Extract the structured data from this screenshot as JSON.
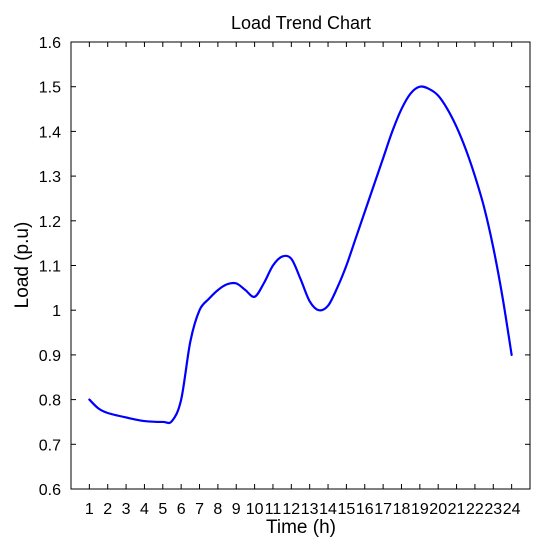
{
  "chart_data": {
    "type": "line",
    "title": "Load Trend Chart",
    "xlabel": "Time (h)",
    "ylabel": "Load (p.u)",
    "xlim": [
      0,
      25
    ],
    "ylim": [
      0.6,
      1.6
    ],
    "x_ticks": [
      1,
      2,
      3,
      4,
      5,
      6,
      7,
      8,
      9,
      10,
      11,
      12,
      13,
      14,
      15,
      16,
      17,
      18,
      19,
      20,
      21,
      22,
      23,
      24
    ],
    "x_tick_labels": [
      "1",
      "2",
      "3",
      "4",
      "5",
      "6",
      "7",
      "8",
      "9",
      "10",
      "11",
      "12",
      "13",
      "14",
      "15",
      "16",
      "17",
      "18",
      "19",
      "20",
      "21",
      "22",
      "23",
      "24"
    ],
    "y_ticks": [
      0.6,
      0.7,
      0.8,
      0.9,
      1.0,
      1.1,
      1.2,
      1.3,
      1.4,
      1.5,
      1.6
    ],
    "y_tick_labels": [
      "0.6",
      "0.7",
      "0.8",
      "0.9",
      "1",
      "1.1",
      "1.2",
      "1.3",
      "1.4",
      "1.5",
      "1.6"
    ],
    "grid": false,
    "series": [
      {
        "color": "#0000ff",
        "x": [
          1,
          1.5,
          2,
          3,
          4,
          5,
          5.5,
          6,
          6.5,
          7,
          7.5,
          8,
          8.5,
          9,
          9.5,
          10,
          10.5,
          11,
          11.5,
          12,
          12.5,
          13,
          13.5,
          14,
          14.5,
          15,
          15.5,
          16,
          16.5,
          17,
          17.5,
          18,
          18.5,
          19,
          19.5,
          20,
          20.5,
          21,
          21.5,
          22,
          22.5,
          23,
          23.5,
          24
        ],
        "y": [
          0.8,
          0.78,
          0.77,
          0.76,
          0.752,
          0.75,
          0.752,
          0.8,
          0.93,
          1.0,
          1.025,
          1.045,
          1.058,
          1.06,
          1.045,
          1.03,
          1.06,
          1.1,
          1.12,
          1.115,
          1.07,
          1.02,
          1.0,
          1.01,
          1.05,
          1.1,
          1.16,
          1.22,
          1.28,
          1.34,
          1.4,
          1.45,
          1.485,
          1.5,
          1.495,
          1.48,
          1.45,
          1.41,
          1.36,
          1.3,
          1.23,
          1.14,
          1.03,
          0.9
        ]
      }
    ]
  }
}
